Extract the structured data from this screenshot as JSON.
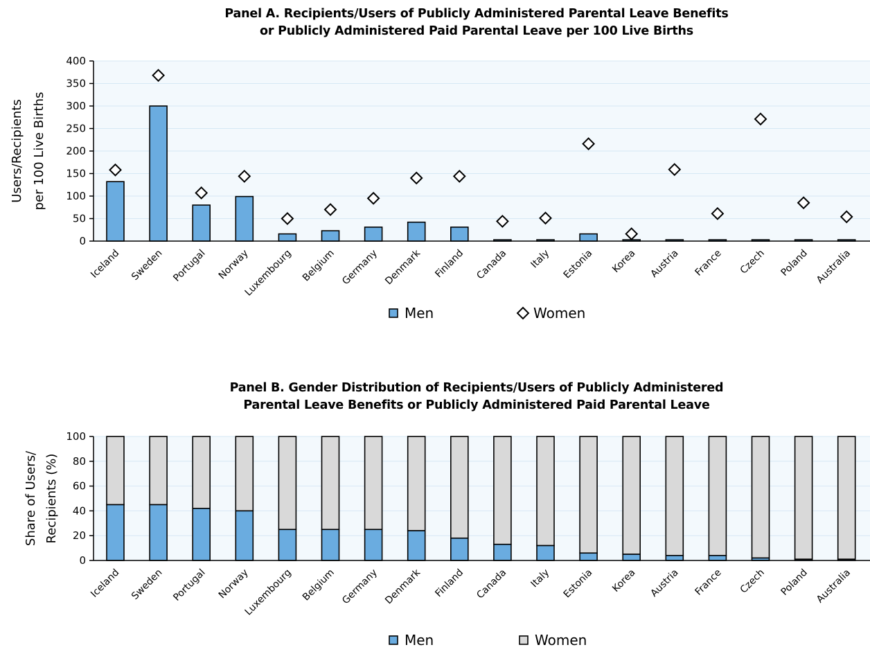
{
  "colors": {
    "men": "#6aace0",
    "women": "#d9d9d9",
    "plot_bg": "#f3f9fd",
    "grid": "#d6e8f5",
    "stroke": "#000000"
  },
  "chart_data": [
    {
      "type": "bar",
      "title": [
        "Panel A. Recipients/Users of Publicly Administered Parental Leave Benefits",
        "or Publicly Administered Paid Parental Leave per 100 Live Births"
      ],
      "ylabel": [
        "Users/Recipients",
        "per 100 Live Births"
      ],
      "ylim": [
        0,
        400
      ],
      "yticks": [
        0,
        50,
        100,
        150,
        200,
        250,
        300,
        350,
        400
      ],
      "categories": [
        "Iceland",
        "Sweden",
        "Portugal",
        "Norway",
        "Luxembourg",
        "Belgium",
        "Germany",
        "Denmark",
        "Finland",
        "Canada",
        "Italy",
        "Estonia",
        "Korea",
        "Austria",
        "France",
        "Czech",
        "Poland",
        "Australia"
      ],
      "series": [
        {
          "name": "Men",
          "mark": "bar",
          "values": [
            132,
            300,
            80,
            99,
            16,
            23,
            31,
            42,
            31,
            3,
            3,
            16,
            3,
            3,
            3,
            3,
            3,
            3
          ]
        },
        {
          "name": "Women",
          "mark": "diamond",
          "values": [
            158,
            368,
            107,
            144,
            50,
            70,
            95,
            140,
            144,
            44,
            51,
            216,
            16,
            159,
            61,
            271,
            85,
            54
          ]
        }
      ],
      "legend": "bottom-center",
      "grid": true
    },
    {
      "type": "bar",
      "stacked": true,
      "title": [
        "Panel B. Gender Distribution of Recipients/Users of Publicly Administered",
        "Parental Leave Benefits or Publicly Administered Paid Parental Leave"
      ],
      "ylabel": [
        "Share of Users/",
        "Recipients (%)"
      ],
      "ylim": [
        0,
        100
      ],
      "yticks": [
        0,
        20,
        40,
        60,
        80,
        100
      ],
      "categories": [
        "Iceland",
        "Sweden",
        "Portugal",
        "Norway",
        "Luxembourg",
        "Belgium",
        "Germany",
        "Denmark",
        "Finland",
        "Canada",
        "Italy",
        "Estonia",
        "Korea",
        "Austria",
        "France",
        "Czech",
        "Poland",
        "Australia"
      ],
      "series": [
        {
          "name": "Men",
          "values": [
            45,
            45,
            42,
            40,
            25,
            25,
            25,
            24,
            18,
            13,
            12,
            6,
            5,
            4,
            4,
            2,
            1,
            1
          ]
        },
        {
          "name": "Women",
          "values": [
            55,
            55,
            58,
            60,
            75,
            75,
            75,
            76,
            82,
            87,
            88,
            94,
            95,
            96,
            96,
            98,
            99,
            99
          ]
        }
      ],
      "legend": "bottom-center",
      "grid": true
    }
  ]
}
